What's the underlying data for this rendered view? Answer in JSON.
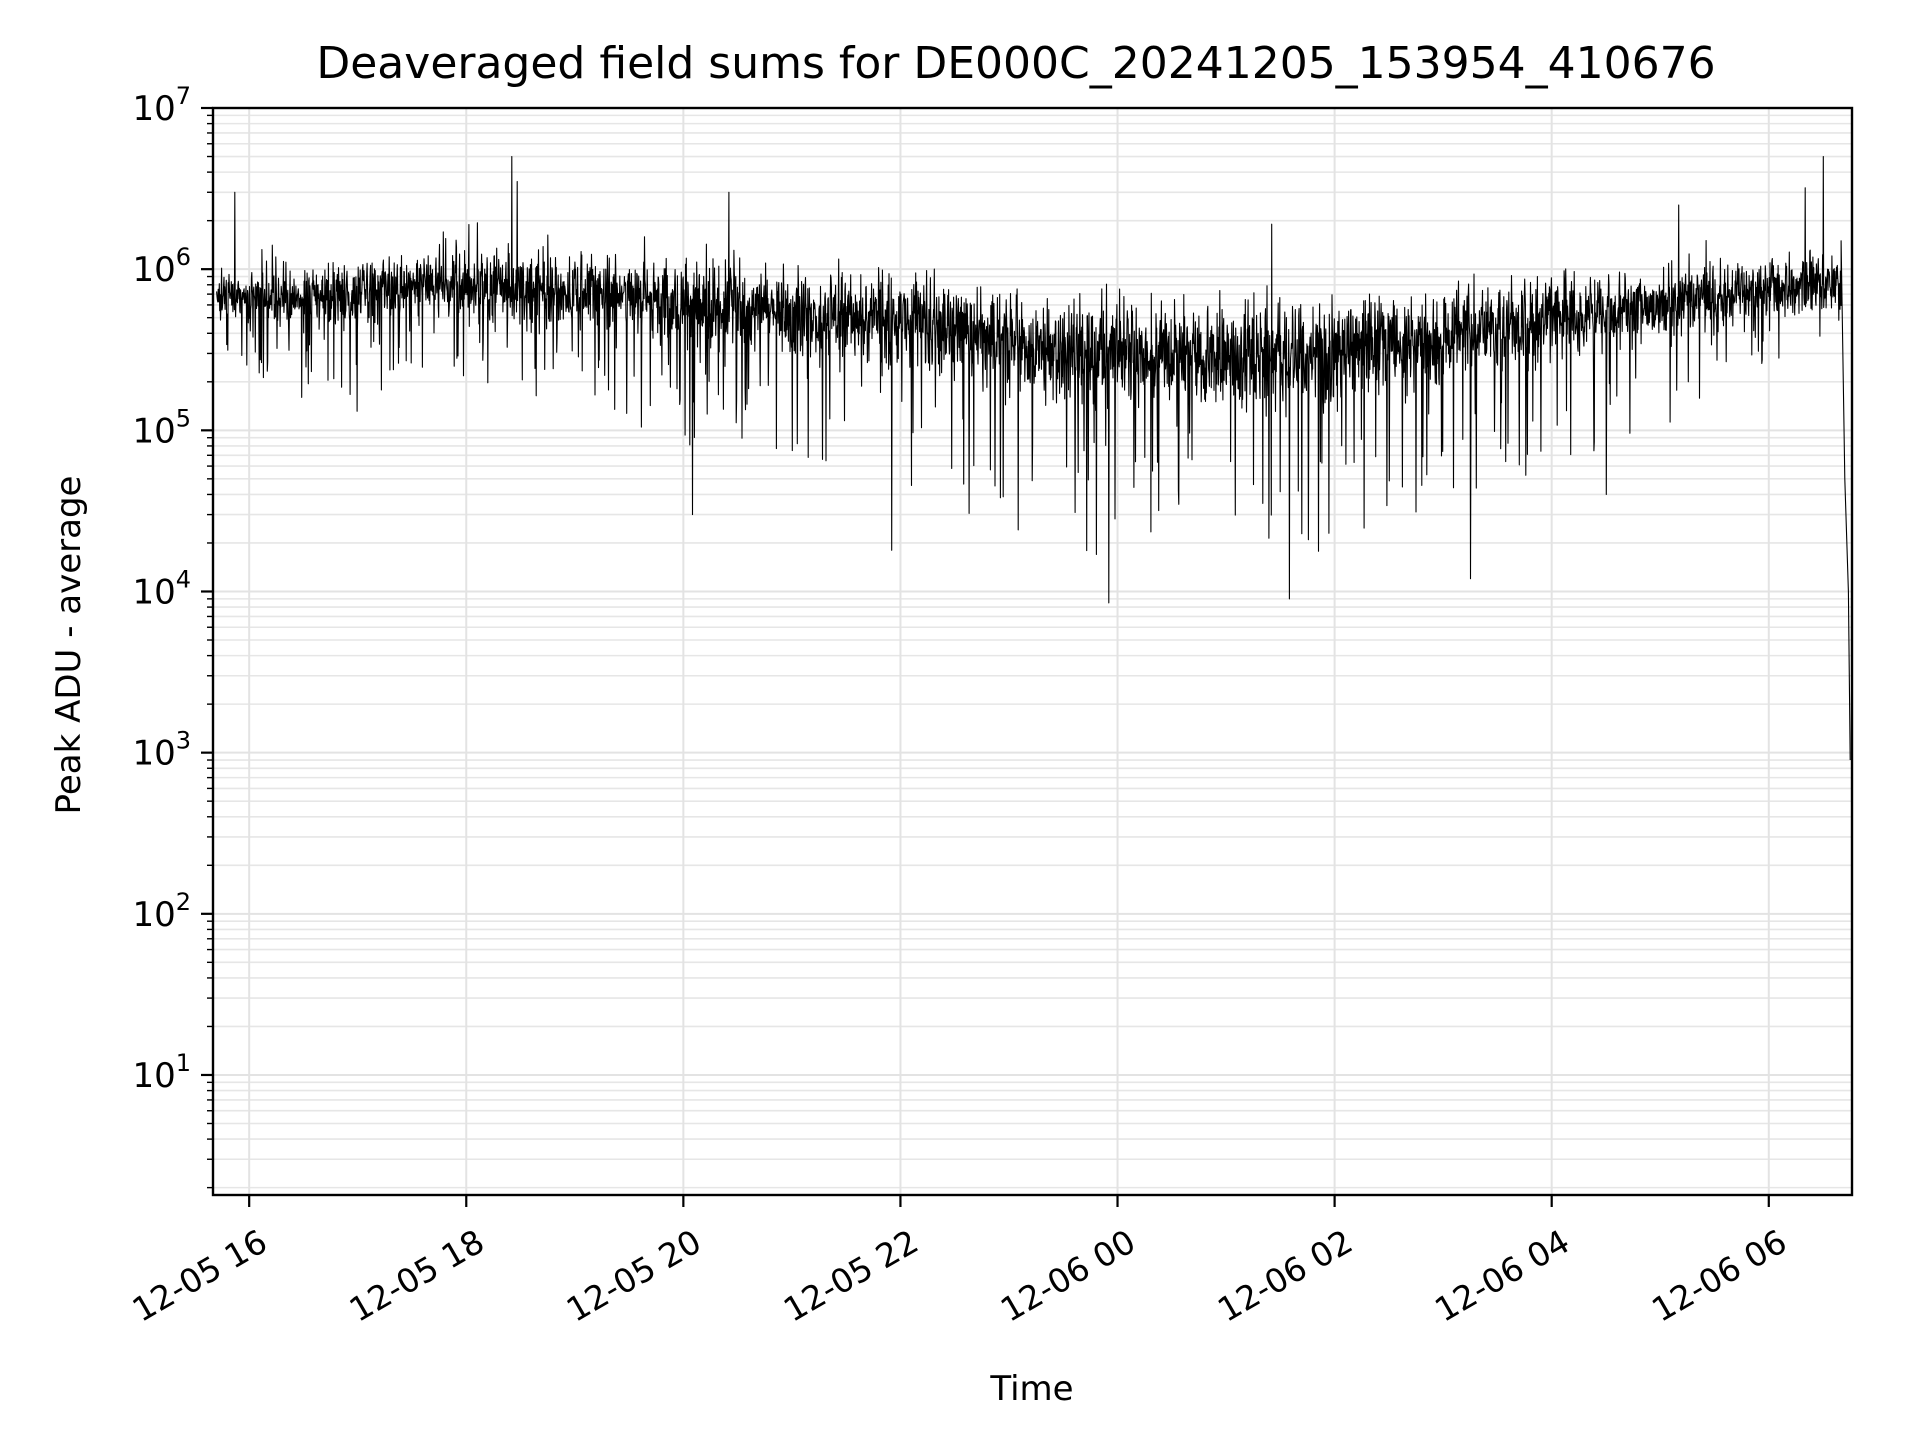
{
  "chart_data": {
    "type": "line",
    "title": "Deaveraged field sums for DE000C_20241205_153954_410676",
    "xlabel": "Time",
    "ylabel": "Peak ADU - average",
    "yscale": "log",
    "ylim": [
      1.8,
      10000000
    ],
    "xlim": [
      "12-05 15:40",
      "12-06 06:46"
    ],
    "grid": true,
    "x_ticks": [
      "12-05 16",
      "12-05 18",
      "12-05 20",
      "12-05 22",
      "12-06 00",
      "12-06 02",
      "12-06 04",
      "12-06 06"
    ],
    "y_ticks": [
      {
        "base": "10",
        "exp": "1",
        "value": 10
      },
      {
        "base": "10",
        "exp": "2",
        "value": 100
      },
      {
        "base": "10",
        "exp": "3",
        "value": 1000
      },
      {
        "base": "10",
        "exp": "4",
        "value": 10000
      },
      {
        "base": "10",
        "exp": "5",
        "value": 100000
      },
      {
        "base": "10",
        "exp": "6",
        "value": 1000000
      },
      {
        "base": "10",
        "exp": "7",
        "value": 10000000
      }
    ],
    "series": [
      {
        "color": "#000000",
        "envelope": [
          {
            "x": "12-05 15:45",
            "median": 700000,
            "low": 300000,
            "high": 1600000
          },
          {
            "x": "12-05 16:30",
            "median": 650000,
            "low": 150000,
            "high": 1500000
          },
          {
            "x": "12-05 17:00",
            "median": 700000,
            "low": 120000,
            "high": 1700000
          },
          {
            "x": "12-05 17:30",
            "median": 800000,
            "low": 250000,
            "high": 2000000
          },
          {
            "x": "12-05 18:00",
            "median": 800000,
            "low": 200000,
            "high": 1900000
          },
          {
            "x": "12-05 18:40",
            "median": 750000,
            "low": 150000,
            "high": 2500000
          },
          {
            "x": "12-05 19:20",
            "median": 700000,
            "low": 120000,
            "high": 2000000
          },
          {
            "x": "12-05 20:00",
            "median": 600000,
            "low": 80000,
            "high": 1500000
          },
          {
            "x": "12-05 20:40",
            "median": 550000,
            "low": 80000,
            "high": 1500000
          },
          {
            "x": "12-05 21:20",
            "median": 500000,
            "low": 60000,
            "high": 1300000
          },
          {
            "x": "12-05 22:00",
            "median": 450000,
            "low": 40000,
            "high": 1200000
          },
          {
            "x": "12-05 22:40",
            "median": 400000,
            "low": 30000,
            "high": 1100000
          },
          {
            "x": "12-05 23:20",
            "median": 300000,
            "low": 20000,
            "high": 900000
          },
          {
            "x": "12-06 00:00",
            "median": 300000,
            "low": 15000,
            "high": 800000
          },
          {
            "x": "12-06 00:40",
            "median": 300000,
            "low": 25000,
            "high": 800000
          },
          {
            "x": "12-06 01:20",
            "median": 280000,
            "low": 15000,
            "high": 800000
          },
          {
            "x": "12-06 02:00",
            "median": 300000,
            "low": 15000,
            "high": 850000
          },
          {
            "x": "12-06 02:40",
            "median": 350000,
            "low": 30000,
            "high": 900000
          },
          {
            "x": "12-06 03:20",
            "median": 400000,
            "low": 40000,
            "high": 1000000
          },
          {
            "x": "12-06 04:00",
            "median": 500000,
            "low": 60000,
            "high": 1200000
          },
          {
            "x": "12-06 04:40",
            "median": 550000,
            "low": 80000,
            "high": 1300000
          },
          {
            "x": "12-06 05:20",
            "median": 650000,
            "low": 120000,
            "high": 1500000
          },
          {
            "x": "12-06 05:55",
            "median": 750000,
            "low": 200000,
            "high": 2000000
          },
          {
            "x": "12-06 06:35",
            "median": 800000,
            "low": 300000,
            "high": 1900000
          }
        ],
        "spikes": [
          {
            "x": "12-05 15:52",
            "y": 3000000
          },
          {
            "x": "12-05 18:25",
            "y": 5000000
          },
          {
            "x": "12-05 18:28",
            "y": 3500000
          },
          {
            "x": "12-05 20:25",
            "y": 3000000
          },
          {
            "x": "12-06 01:25",
            "y": 1900000
          },
          {
            "x": "12-06 05:10",
            "y": 2500000
          },
          {
            "x": "12-06 06:30",
            "y": 5000000
          },
          {
            "x": "12-06 06:20",
            "y": 3200000
          },
          {
            "x": "12-05 20:05",
            "y": 30000
          },
          {
            "x": "12-05 21:55",
            "y": 18000
          },
          {
            "x": "12-05 23:55",
            "y": 8500
          },
          {
            "x": "12-06 01:35",
            "y": 9000
          },
          {
            "x": "12-06 03:15",
            "y": 12000
          },
          {
            "x": "12-06 04:30",
            "y": 40000
          }
        ],
        "tail": [
          {
            "x": "12-06 06:40",
            "y": 1500000
          },
          {
            "x": "12-06 06:42",
            "y": 50000
          },
          {
            "x": "12-06 06:44",
            "y": 10000
          },
          {
            "x": "12-06 06:45",
            "y": 900
          }
        ]
      }
    ]
  }
}
